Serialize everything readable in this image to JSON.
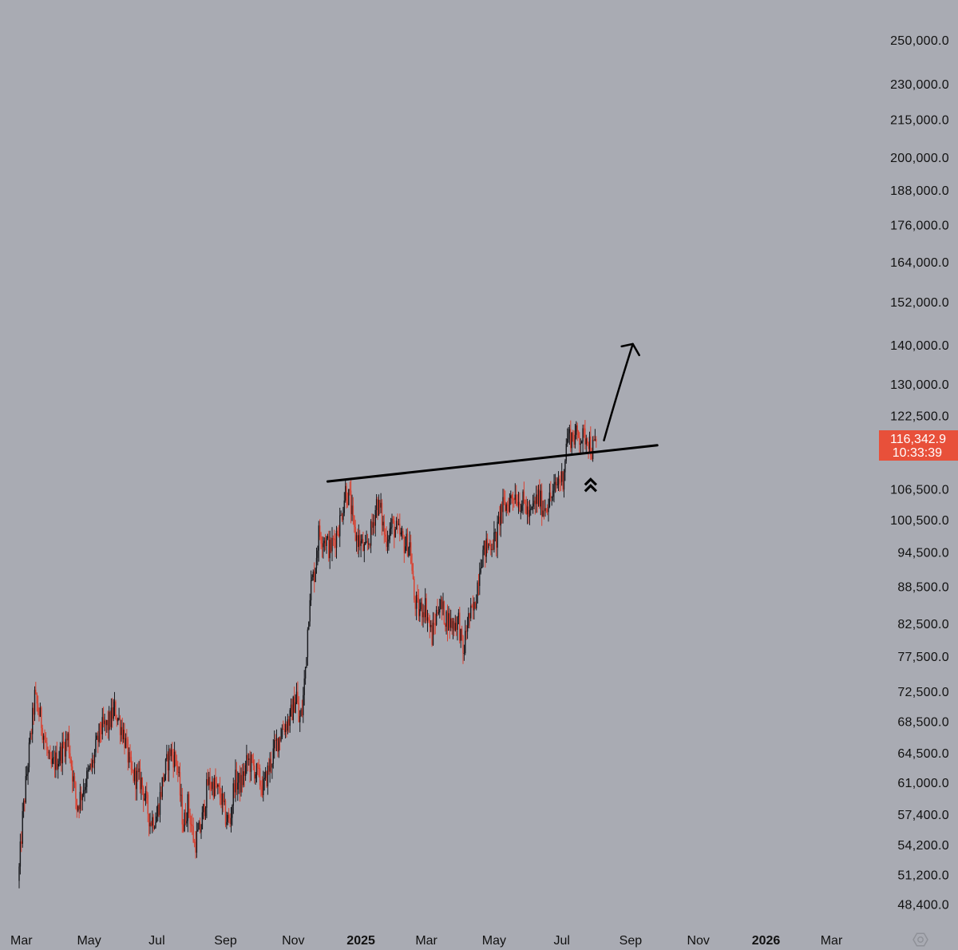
{
  "colors": {
    "background": "#a9abb3",
    "up": "#17181c",
    "down": "#d9402f",
    "drawing": "#000000",
    "badge": "#e8503a",
    "text": "#111111"
  },
  "chart_data": {
    "type": "candlestick",
    "title": "",
    "scale": "logarithmic",
    "ylim": [
      46500,
      262000
    ],
    "price_axis_ticks": [
      "250,000.0",
      "230,000.0",
      "215,000.0",
      "200,000.0",
      "188,000.0",
      "176,000.0",
      "164,000.0",
      "152,000.0",
      "140,000.0",
      "130,000.0",
      "122,500.0",
      "106,500.0",
      "100,500.0",
      "94,500.0",
      "88,500.0",
      "82,500.0",
      "77,500.0",
      "72,500.0",
      "68,500.0",
      "64,500.0",
      "61,000.0",
      "57,400.0",
      "54,200.0",
      "51,200.0",
      "48,400.0"
    ],
    "time_axis_ticks": [
      {
        "label": "Mar",
        "index": 2,
        "major": false
      },
      {
        "label": "May",
        "index": 63,
        "major": false
      },
      {
        "label": "Jul",
        "index": 124,
        "major": false
      },
      {
        "label": "Sep",
        "index": 186,
        "major": false
      },
      {
        "label": "Nov",
        "index": 247,
        "major": false
      },
      {
        "label": "2025",
        "index": 308,
        "major": true
      },
      {
        "label": "Mar",
        "index": 367,
        "major": false
      },
      {
        "label": "May",
        "index": 428,
        "major": false
      },
      {
        "label": "Jul",
        "index": 489,
        "major": false
      },
      {
        "label": "Sep",
        "index": 551,
        "major": false
      },
      {
        "label": "Nov",
        "index": 612,
        "major": false
      },
      {
        "label": "2026",
        "index": 673,
        "major": true
      },
      {
        "label": "Mar",
        "index": 732,
        "major": false
      }
    ],
    "series_summary": "Daily candles from late Feb 2024 to late Jul 2025, log scale",
    "keypoints": [
      [
        0,
        51700
      ],
      [
        3,
        57000
      ],
      [
        8,
        63500
      ],
      [
        14,
        71800
      ],
      [
        20,
        68500
      ],
      [
        28,
        62700
      ],
      [
        36,
        64200
      ],
      [
        44,
        66500
      ],
      [
        52,
        58300
      ],
      [
        58,
        60600
      ],
      [
        66,
        63200
      ],
      [
        73,
        67500
      ],
      [
        80,
        68100
      ],
      [
        86,
        70200
      ],
      [
        94,
        67100
      ],
      [
        101,
        62100
      ],
      [
        110,
        61200
      ],
      [
        118,
        56800
      ],
      [
        124,
        57300
      ],
      [
        130,
        61700
      ],
      [
        136,
        64800
      ],
      [
        142,
        63600
      ],
      [
        148,
        56200
      ],
      [
        152,
        58700
      ],
      [
        158,
        54300
      ],
      [
        164,
        56200
      ],
      [
        170,
        61000
      ],
      [
        176,
        60700
      ],
      [
        182,
        59300
      ],
      [
        186,
        57200
      ],
      [
        190,
        56600
      ],
      [
        194,
        61300
      ],
      [
        200,
        60900
      ],
      [
        206,
        63700
      ],
      [
        212,
        62700
      ],
      [
        220,
        60400
      ],
      [
        226,
        63200
      ],
      [
        232,
        65900
      ],
      [
        238,
        67900
      ],
      [
        244,
        68900
      ],
      [
        250,
        72300
      ],
      [
        252,
        68600
      ],
      [
        255,
        69900
      ],
      [
        258,
        76000
      ],
      [
        262,
        88000
      ],
      [
        266,
        91000
      ],
      [
        270,
        98000
      ],
      [
        276,
        97000
      ],
      [
        280,
        95000
      ],
      [
        285,
        97500
      ],
      [
        290,
        101000
      ],
      [
        294,
        106500
      ],
      [
        298,
        104500
      ],
      [
        302,
        98000
      ],
      [
        307,
        96500
      ],
      [
        312,
        94500
      ],
      [
        318,
        99000
      ],
      [
        322,
        104000
      ],
      [
        326,
        102000
      ],
      [
        330,
        97000
      ],
      [
        336,
        99500
      ],
      [
        342,
        98000
      ],
      [
        347,
        96200
      ],
      [
        352,
        96000
      ],
      [
        356,
        86500
      ],
      [
        360,
        84600
      ],
      [
        366,
        85500
      ],
      [
        372,
        80500
      ],
      [
        378,
        86000
      ],
      [
        384,
        83700
      ],
      [
        390,
        82500
      ],
      [
        396,
        83200
      ],
      [
        400,
        77700
      ],
      [
        404,
        83000
      ],
      [
        410,
        84800
      ],
      [
        416,
        93700
      ],
      [
        421,
        95500
      ],
      [
        426,
        96500
      ],
      [
        430,
        97000
      ],
      [
        434,
        102500
      ],
      [
        440,
        103600
      ],
      [
        446,
        106000
      ],
      [
        450,
        104500
      ],
      [
        456,
        103500
      ],
      [
        460,
        101000
      ],
      [
        464,
        103500
      ],
      [
        468,
        105000
      ],
      [
        472,
        103000
      ],
      [
        478,
        104500
      ],
      [
        482,
        106000
      ],
      [
        486,
        108500
      ],
      [
        490,
        109000
      ],
      [
        494,
        118000
      ],
      [
        500,
        117800
      ],
      [
        504,
        118200
      ],
      [
        508,
        117500
      ],
      [
        512,
        118300
      ],
      [
        516,
        114800
      ],
      [
        520,
        116342.9
      ]
    ],
    "last_price": {
      "value": "116,342.9",
      "countdown": "10:33:39",
      "raw": 116342.9
    },
    "annotations": [
      {
        "type": "trendline",
        "from": [
          278,
          108200
        ],
        "to": [
          575,
          115900
        ],
        "label": "resistance-turned-support"
      },
      {
        "type": "arrow",
        "from": [
          527,
          117000
        ],
        "to": [
          553,
          140500
        ],
        "label": "projected-move-up"
      },
      {
        "type": "double-chevron-up",
        "at": [
          515,
          108000
        ]
      }
    ]
  }
}
